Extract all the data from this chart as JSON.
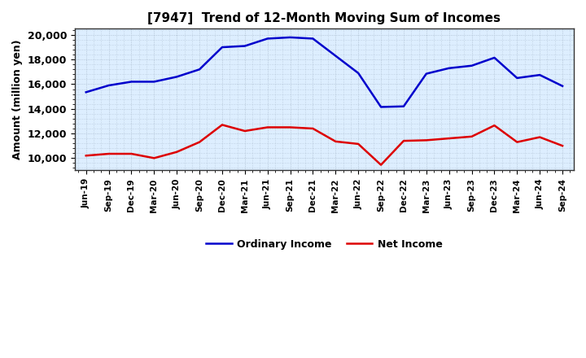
{
  "title": "[7947]  Trend of 12-Month Moving Sum of Incomes",
  "ylabel": "Amount (million yen)",
  "ylim": [
    9000,
    20500
  ],
  "yticks": [
    10000,
    12000,
    14000,
    16000,
    18000,
    20000
  ],
  "background_color": "#ffffff",
  "plot_bg_color": "#ddeeff",
  "grid_color": "#aabbcc",
  "ordinary_income_color": "#0000cc",
  "net_income_color": "#dd0000",
  "labels": [
    "Jun-19",
    "Sep-19",
    "Dec-19",
    "Mar-20",
    "Jun-20",
    "Sep-20",
    "Dec-20",
    "Mar-21",
    "Jun-21",
    "Sep-21",
    "Dec-21",
    "Mar-22",
    "Jun-22",
    "Sep-22",
    "Dec-22",
    "Mar-23",
    "Jun-23",
    "Sep-23",
    "Dec-23",
    "Mar-24",
    "Jun-24",
    "Sep-24"
  ],
  "ordinary_income": [
    15350,
    15900,
    16200,
    16200,
    16600,
    17200,
    19000,
    19100,
    19700,
    19800,
    19700,
    18300,
    16900,
    14150,
    14200,
    16850,
    17300,
    17500,
    18150,
    16500,
    16750,
    15850
  ],
  "net_income": [
    10200,
    10350,
    10350,
    10000,
    10500,
    11300,
    12700,
    12200,
    12500,
    12500,
    12400,
    11350,
    11150,
    9450,
    11400,
    11450,
    11600,
    11750,
    12650,
    11300,
    11700,
    11000
  ]
}
